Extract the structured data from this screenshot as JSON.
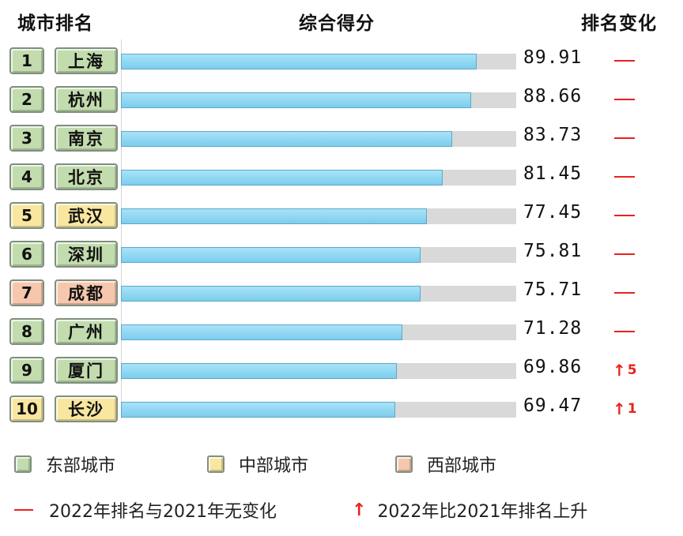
{
  "header": {
    "city_rank": "城市排名",
    "score": "综合得分",
    "change": "排名变化"
  },
  "colors": {
    "east": "#c2dcae",
    "central": "#f9e7a0",
    "west": "#f6c7ad",
    "bar": "#7ccdee",
    "bar_bg": "#d9d9d9",
    "change": "#e8231c"
  },
  "chart_data": {
    "type": "bar",
    "orientation": "horizontal",
    "xlim": [
      0,
      100
    ],
    "categories": [
      "上海",
      "杭州",
      "南京",
      "北京",
      "武汉",
      "深圳",
      "成都",
      "广州",
      "厦门",
      "长沙"
    ],
    "values": [
      89.91,
      88.66,
      83.73,
      81.45,
      77.45,
      75.81,
      75.71,
      71.28,
      69.86,
      69.47
    ]
  },
  "rows": [
    {
      "rank": "1",
      "city": "上海",
      "score": "89.91",
      "value": 89.91,
      "region": "east",
      "change": "same",
      "up": ""
    },
    {
      "rank": "2",
      "city": "杭州",
      "score": "88.66",
      "value": 88.66,
      "region": "east",
      "change": "same",
      "up": ""
    },
    {
      "rank": "3",
      "city": "南京",
      "score": "83.73",
      "value": 83.73,
      "region": "east",
      "change": "same",
      "up": ""
    },
    {
      "rank": "4",
      "city": "北京",
      "score": "81.45",
      "value": 81.45,
      "region": "east",
      "change": "same",
      "up": ""
    },
    {
      "rank": "5",
      "city": "武汉",
      "score": "77.45",
      "value": 77.45,
      "region": "central",
      "change": "same",
      "up": ""
    },
    {
      "rank": "6",
      "city": "深圳",
      "score": "75.81",
      "value": 75.81,
      "region": "east",
      "change": "same",
      "up": ""
    },
    {
      "rank": "7",
      "city": "成都",
      "score": "75.71",
      "value": 75.71,
      "region": "west",
      "change": "same",
      "up": ""
    },
    {
      "rank": "8",
      "city": "广州",
      "score": "71.28",
      "value": 71.28,
      "region": "east",
      "change": "same",
      "up": ""
    },
    {
      "rank": "9",
      "city": "厦门",
      "score": "69.86",
      "value": 69.86,
      "region": "east",
      "change": "up",
      "up": "5"
    },
    {
      "rank": "10",
      "city": "长沙",
      "score": "69.47",
      "value": 69.47,
      "region": "central",
      "change": "up",
      "up": "1"
    }
  ],
  "legend": {
    "east": "东部城市",
    "central": "中部城市",
    "west": "西部城市",
    "same": "2022年排名与2021年无变化",
    "up": "2022年比2021年排名上升",
    "arrow": "↑"
  }
}
